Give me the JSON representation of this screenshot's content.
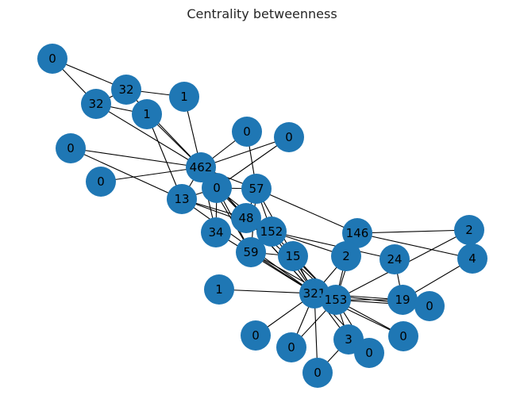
{
  "title": "Centrality betweenness",
  "colors": {
    "node": "#1f77b4",
    "edge": "#000000",
    "background": "#ffffff"
  },
  "nodes": [
    {
      "id": "n01",
      "label": "0"
    },
    {
      "id": "n02",
      "label": "32"
    },
    {
      "id": "n03",
      "label": "32"
    },
    {
      "id": "n04",
      "label": "1"
    },
    {
      "id": "n05",
      "label": "1"
    },
    {
      "id": "n06",
      "label": "0"
    },
    {
      "id": "n07",
      "label": "0"
    },
    {
      "id": "n08",
      "label": "0"
    },
    {
      "id": "n09",
      "label": "462"
    },
    {
      "id": "n10",
      "label": "0"
    },
    {
      "id": "n11",
      "label": "13"
    },
    {
      "id": "n12",
      "label": "0"
    },
    {
      "id": "n13",
      "label": "57"
    },
    {
      "id": "n14",
      "label": "48"
    },
    {
      "id": "n15",
      "label": "34"
    },
    {
      "id": "n16",
      "label": "152"
    },
    {
      "id": "n17",
      "label": "59"
    },
    {
      "id": "n18",
      "label": "15"
    },
    {
      "id": "n19",
      "label": "146"
    },
    {
      "id": "n20",
      "label": "2"
    },
    {
      "id": "n21",
      "label": "2"
    },
    {
      "id": "n22",
      "label": "4"
    },
    {
      "id": "n23",
      "label": "24"
    },
    {
      "id": "n24",
      "label": "1"
    },
    {
      "id": "n25",
      "label": "321"
    },
    {
      "id": "n26",
      "label": "153"
    },
    {
      "id": "n27",
      "label": "19"
    },
    {
      "id": "n28",
      "label": "0"
    },
    {
      "id": "n29",
      "label": "0"
    },
    {
      "id": "n30",
      "label": "0"
    },
    {
      "id": "n31",
      "label": "3"
    },
    {
      "id": "n32",
      "label": "0"
    },
    {
      "id": "n33",
      "label": "0"
    },
    {
      "id": "n34",
      "label": "0"
    }
  ],
  "edges": [
    [
      "n01",
      "n02"
    ],
    [
      "n01",
      "n03"
    ],
    [
      "n02",
      "n03"
    ],
    [
      "n02",
      "n05"
    ],
    [
      "n03",
      "n04"
    ],
    [
      "n03",
      "n09"
    ],
    [
      "n02",
      "n09"
    ],
    [
      "n04",
      "n09"
    ],
    [
      "n04",
      "n11"
    ],
    [
      "n05",
      "n09"
    ],
    [
      "n06",
      "n09"
    ],
    [
      "n07",
      "n09"
    ],
    [
      "n08",
      "n09"
    ],
    [
      "n08",
      "n11"
    ],
    [
      "n09",
      "n10"
    ],
    [
      "n09",
      "n11"
    ],
    [
      "n09",
      "n12"
    ],
    [
      "n09",
      "n13"
    ],
    [
      "n09",
      "n14"
    ],
    [
      "n09",
      "n15"
    ],
    [
      "n09",
      "n17"
    ],
    [
      "n09",
      "n25"
    ],
    [
      "n06",
      "n13"
    ],
    [
      "n07",
      "n12"
    ],
    [
      "n11",
      "n14"
    ],
    [
      "n11",
      "n12"
    ],
    [
      "n11",
      "n16"
    ],
    [
      "n11",
      "n25"
    ],
    [
      "n12",
      "n14"
    ],
    [
      "n12",
      "n15"
    ],
    [
      "n12",
      "n16"
    ],
    [
      "n12",
      "n17"
    ],
    [
      "n13",
      "n12"
    ],
    [
      "n13",
      "n19"
    ],
    [
      "n13",
      "n16"
    ],
    [
      "n13",
      "n17"
    ],
    [
      "n13",
      "n25"
    ],
    [
      "n13",
      "n14"
    ],
    [
      "n14",
      "n16"
    ],
    [
      "n14",
      "n25"
    ],
    [
      "n14",
      "n26"
    ],
    [
      "n15",
      "n25"
    ],
    [
      "n16",
      "n21"
    ],
    [
      "n16",
      "n23"
    ],
    [
      "n16",
      "n25"
    ],
    [
      "n16",
      "n26"
    ],
    [
      "n17",
      "n18"
    ],
    [
      "n17",
      "n25"
    ],
    [
      "n17",
      "n26"
    ],
    [
      "n17",
      "n16"
    ],
    [
      "n18",
      "n25"
    ],
    [
      "n18",
      "n26"
    ],
    [
      "n19",
      "n20"
    ],
    [
      "n19",
      "n22"
    ],
    [
      "n19",
      "n26"
    ],
    [
      "n20",
      "n26"
    ],
    [
      "n21",
      "n25"
    ],
    [
      "n21",
      "n26"
    ],
    [
      "n22",
      "n27"
    ],
    [
      "n23",
      "n27"
    ],
    [
      "n24",
      "n25"
    ],
    [
      "n25",
      "n26"
    ],
    [
      "n25",
      "n27"
    ],
    [
      "n25",
      "n28"
    ],
    [
      "n25",
      "n29"
    ],
    [
      "n25",
      "n30"
    ],
    [
      "n25",
      "n31"
    ],
    [
      "n25",
      "n32"
    ],
    [
      "n25",
      "n33"
    ],
    [
      "n25",
      "n34"
    ],
    [
      "n26",
      "n27"
    ],
    [
      "n26",
      "n28"
    ],
    [
      "n26",
      "n31"
    ],
    [
      "n26",
      "n32"
    ],
    [
      "n26",
      "n33"
    ],
    [
      "n26",
      "n30"
    ],
    [
      "n27",
      "n28"
    ],
    [
      "n31",
      "n34"
    ]
  ]
}
